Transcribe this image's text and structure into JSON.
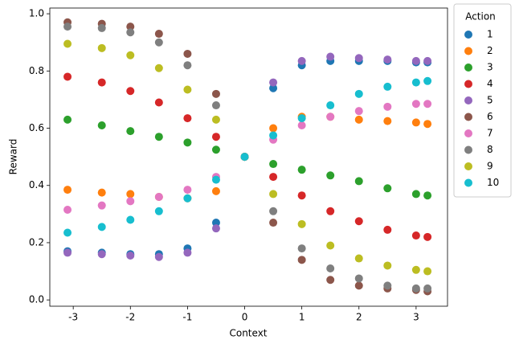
{
  "chart_data": {
    "type": "scatter",
    "x_label": "Context",
    "y_label": "Reward",
    "legend_title": "Action",
    "legend": "upper right outside",
    "x": [
      -3.1,
      -2.5,
      -2,
      -1.5,
      -1,
      -0.5,
      0,
      0.5,
      1,
      1.5,
      2,
      2.5,
      3.0,
      3.2
    ],
    "series": [
      {
        "name": "1",
        "color": "#1f77b4",
        "values": [
          0.17,
          0.165,
          0.16,
          0.16,
          0.18,
          0.27,
          0.5,
          0.74,
          0.82,
          0.835,
          0.835,
          0.835,
          0.83,
          0.83
        ]
      },
      {
        "name": "2",
        "color": "#ff7f0e",
        "values": [
          0.385,
          0.375,
          0.37,
          0.36,
          0.355,
          0.38,
          0.5,
          0.6,
          0.64,
          0.64,
          0.63,
          0.625,
          0.62,
          0.615
        ]
      },
      {
        "name": "3",
        "color": "#2ca02c",
        "values": [
          0.63,
          0.61,
          0.59,
          0.57,
          0.55,
          0.525,
          0.5,
          0.475,
          0.455,
          0.435,
          0.415,
          0.39,
          0.37,
          0.365
        ]
      },
      {
        "name": "4",
        "color": "#d62728",
        "values": [
          0.78,
          0.76,
          0.73,
          0.69,
          0.635,
          0.57,
          0.5,
          0.43,
          0.365,
          0.31,
          0.275,
          0.245,
          0.225,
          0.22
        ]
      },
      {
        "name": "5",
        "color": "#9467bd",
        "values": [
          0.165,
          0.16,
          0.155,
          0.15,
          0.165,
          0.25,
          0.5,
          0.76,
          0.835,
          0.85,
          0.845,
          0.84,
          0.835,
          0.835
        ]
      },
      {
        "name": "6",
        "color": "#8c564b",
        "values": [
          0.97,
          0.965,
          0.955,
          0.93,
          0.86,
          0.72,
          0.5,
          0.27,
          0.14,
          0.07,
          0.05,
          0.04,
          0.035,
          0.03
        ]
      },
      {
        "name": "7",
        "color": "#e377c2",
        "values": [
          0.315,
          0.33,
          0.345,
          0.36,
          0.385,
          0.43,
          0.5,
          0.56,
          0.61,
          0.64,
          0.66,
          0.675,
          0.685,
          0.685
        ]
      },
      {
        "name": "8",
        "color": "#7f7f7f",
        "values": [
          0.955,
          0.95,
          0.935,
          0.9,
          0.82,
          0.68,
          0.5,
          0.31,
          0.18,
          0.11,
          0.075,
          0.05,
          0.04,
          0.04
        ]
      },
      {
        "name": "9",
        "color": "#bcbd22",
        "values": [
          0.895,
          0.88,
          0.855,
          0.81,
          0.735,
          0.63,
          0.5,
          0.37,
          0.265,
          0.19,
          0.145,
          0.12,
          0.105,
          0.1
        ]
      },
      {
        "name": "10",
        "color": "#17becf",
        "values": [
          0.235,
          0.255,
          0.28,
          0.31,
          0.355,
          0.42,
          0.5,
          0.575,
          0.635,
          0.68,
          0.72,
          0.745,
          0.76,
          0.765
        ]
      }
    ],
    "xlim": [
      -3.41,
      3.55
    ],
    "xticks": [
      -3,
      -2,
      -1,
      0,
      1,
      2,
      3
    ],
    "ylim": [
      -0.022,
      1.02
    ],
    "yticks": [
      {
        "value": 0,
        "label": "0.0"
      },
      0.2,
      0.4,
      0.6,
      0.8,
      {
        "value": 1,
        "label": "1.0"
      }
    ],
    "grid": false
  }
}
